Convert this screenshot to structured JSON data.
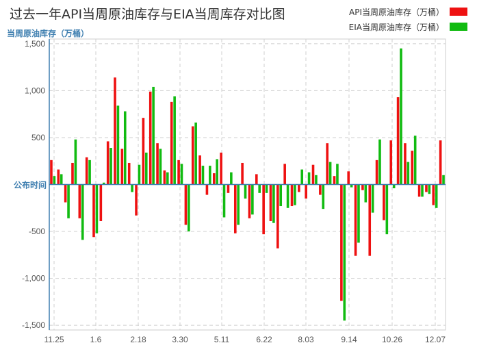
{
  "title": "过去一年API当周原油库存与EIA当周库存对比图",
  "legend": [
    {
      "label": "API当周原油库存（万桶）",
      "color": "#ee1111"
    },
    {
      "label": "EIA当周原油库存（万桶）",
      "color": "#11bb11"
    }
  ],
  "chart_data": {
    "type": "bar",
    "title": "过去一年API当周原油库存与EIA当周库存对比图",
    "ylabel": "当周原油库存（万桶）",
    "zero_label": "公布时间",
    "ylim": [
      -1550,
      1550
    ],
    "yticks": [
      1500,
      1000,
      500,
      0,
      -500,
      -1000,
      -1500
    ],
    "ytick_labels": [
      "1,500",
      "1,000",
      "500",
      "",
      "-500",
      "-1,000",
      "-1,500"
    ],
    "xtick_labels": [
      "11.25",
      "1.6",
      "2.18",
      "3.30",
      "5.11",
      "6.22",
      "8.03",
      "9.14",
      "10.26",
      "12.07"
    ],
    "grid": true,
    "legend_position": "top-right",
    "series": [
      {
        "name": "API当周原油库存（万桶）",
        "color": "#ee1111",
        "values": [
          260,
          160,
          -190,
          230,
          -360,
          290,
          -560,
          -390,
          460,
          1140,
          380,
          230,
          -330,
          710,
          990,
          440,
          150,
          880,
          260,
          -430,
          620,
          310,
          -110,
          120,
          340,
          -90,
          -520,
          230,
          -360,
          110,
          -530,
          -390,
          -680,
          220,
          -230,
          -80,
          -150,
          210,
          -110,
          440,
          90,
          -1240,
          140,
          -760,
          -60,
          -760,
          260,
          -380,
          470,
          930,
          440,
          360,
          -130,
          -80,
          -220,
          470
        ]
      },
      {
        "name": "EIA当周原油库存（万桶）",
        "color": "#11bb11",
        "values": [
          90,
          110,
          -360,
          480,
          -590,
          260,
          -520,
          20,
          390,
          840,
          780,
          -80,
          210,
          340,
          1040,
          380,
          130,
          940,
          220,
          -500,
          660,
          200,
          200,
          270,
          -350,
          130,
          -430,
          -150,
          -320,
          -90,
          -90,
          -410,
          -230,
          -250,
          -220,
          160,
          130,
          100,
          -260,
          240,
          220,
          -1450,
          -30,
          -620,
          -190,
          -300,
          480,
          -530,
          -40,
          1450,
          240,
          520,
          -130,
          -100,
          -250,
          100
        ]
      }
    ]
  }
}
